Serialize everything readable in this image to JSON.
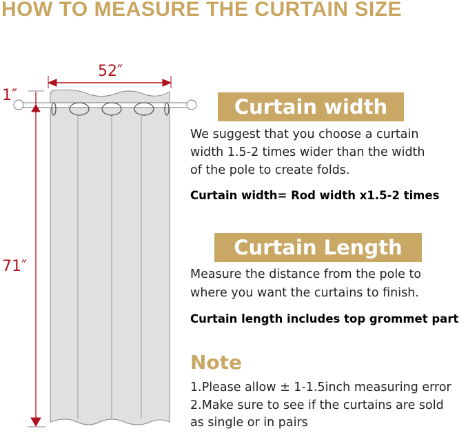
{
  "title": "HOW TO MEASURE THE CURTAIN SIZE",
  "diagram": {
    "width_label": "52″",
    "header_label": "1″",
    "length_label": "71″"
  },
  "width_section": {
    "heading": "Curtain width",
    "lines": [
      "We suggest that you choose a curtain",
      "width 1.5-2 times wider than the width",
      "of the pole to create folds."
    ],
    "formula": "Curtain width= Rod width x1.5-2 times"
  },
  "length_section": {
    "heading": "Curtain Length",
    "lines": [
      "Measure the distance from the pole to",
      "where you want the curtains to finish."
    ],
    "formula": "Curtain length includes top grommet part"
  },
  "note": {
    "heading": "Note",
    "lines": [
      "1.Please allow ± 1-1.5inch measuring error",
      "2.Make sure to see if the curtains are sold",
      "as single or in pairs"
    ]
  },
  "colors": {
    "gold": "#c9a866",
    "dimension_red": "#b0121b",
    "curtain_gray": "#e0e0e0"
  }
}
